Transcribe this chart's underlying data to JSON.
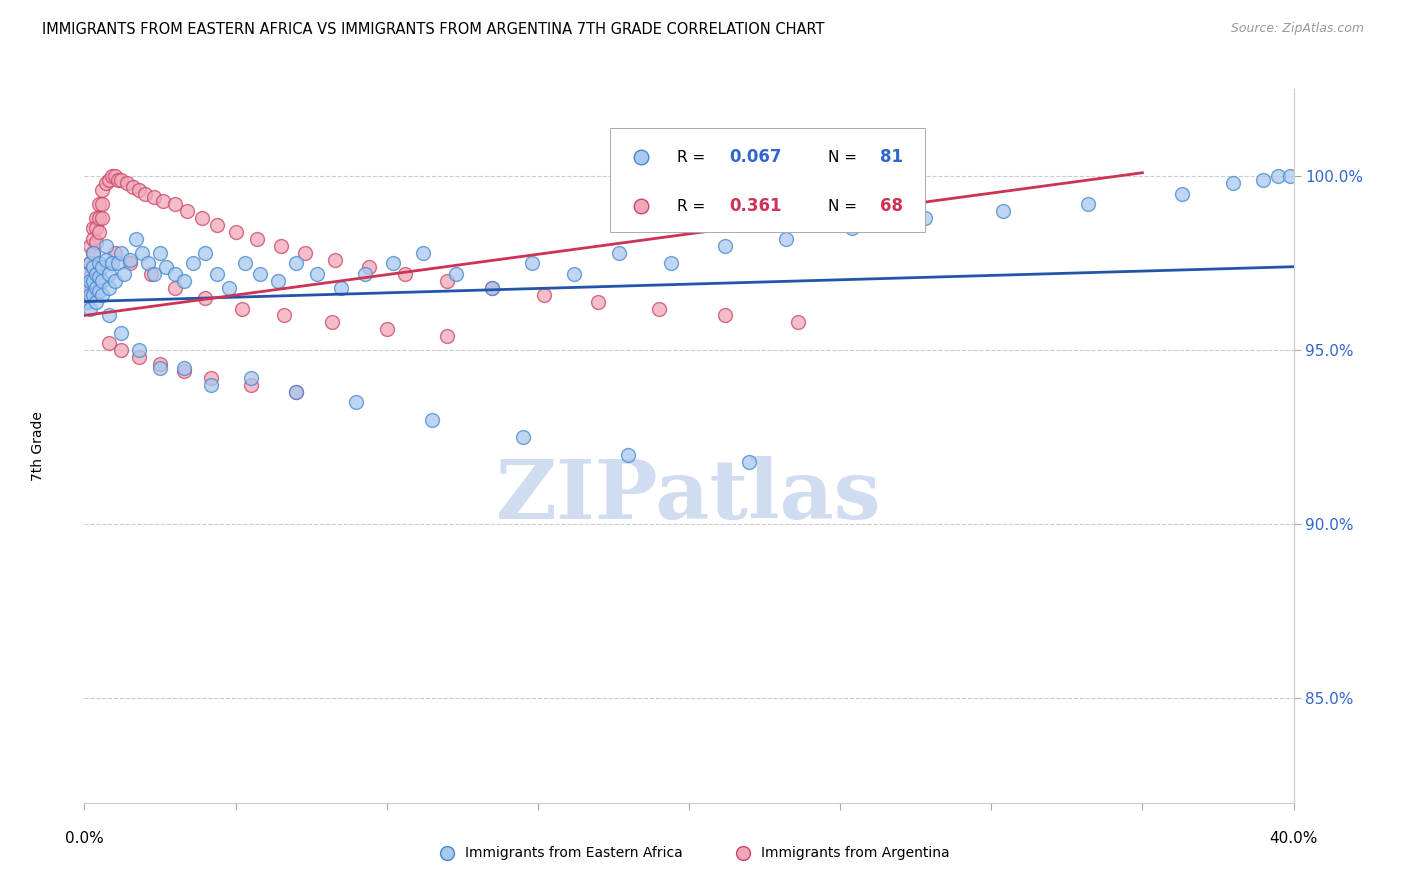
{
  "title": "IMMIGRANTS FROM EASTERN AFRICA VS IMMIGRANTS FROM ARGENTINA 7TH GRADE CORRELATION CHART",
  "source": "Source: ZipAtlas.com",
  "ylabel": "7th Grade",
  "xlim": [
    0.0,
    0.4
  ],
  "ylim": [
    0.82,
    1.025
  ],
  "yticks": [
    0.85,
    0.9,
    0.95,
    1.0
  ],
  "ytick_labels": [
    "85.0%",
    "90.0%",
    "95.0%",
    "100.0%"
  ],
  "xticks": [
    0.0,
    0.05,
    0.1,
    0.15,
    0.2,
    0.25,
    0.3,
    0.35,
    0.4
  ],
  "color_blue": "#A8C8F0",
  "color_pink": "#F0A8B8",
  "color_blue_edge": "#4488CC",
  "color_pink_edge": "#CC4466",
  "color_blue_line": "#2255AA",
  "color_pink_line": "#CC3355",
  "color_axis_blue": "#3366CC",
  "color_axis_pink": "#CC3355",
  "watermark": "ZIPatlas",
  "watermark_color": "#D0DCF0",
  "legend_R1": "0.067",
  "legend_N1": "81",
  "legend_R2": "0.361",
  "legend_N2": "68",
  "blue_x": [
    0.001,
    0.001,
    0.001,
    0.002,
    0.002,
    0.002,
    0.002,
    0.003,
    0.003,
    0.003,
    0.003,
    0.004,
    0.004,
    0.004,
    0.005,
    0.005,
    0.005,
    0.006,
    0.006,
    0.006,
    0.007,
    0.007,
    0.008,
    0.008,
    0.009,
    0.01,
    0.011,
    0.012,
    0.013,
    0.015,
    0.017,
    0.019,
    0.021,
    0.023,
    0.025,
    0.027,
    0.03,
    0.033,
    0.036,
    0.04,
    0.044,
    0.048,
    0.053,
    0.058,
    0.064,
    0.07,
    0.077,
    0.085,
    0.093,
    0.102,
    0.112,
    0.123,
    0.135,
    0.148,
    0.162,
    0.177,
    0.194,
    0.212,
    0.232,
    0.254,
    0.278,
    0.304,
    0.332,
    0.363,
    0.38,
    0.39,
    0.395,
    0.399,
    0.008,
    0.012,
    0.018,
    0.025,
    0.033,
    0.042,
    0.055,
    0.07,
    0.09,
    0.115,
    0.145,
    0.18,
    0.22
  ],
  "blue_y": [
    0.972,
    0.968,
    0.964,
    0.975,
    0.97,
    0.966,
    0.962,
    0.978,
    0.974,
    0.97,
    0.966,
    0.972,
    0.968,
    0.964,
    0.975,
    0.971,
    0.967,
    0.974,
    0.97,
    0.966,
    0.98,
    0.976,
    0.972,
    0.968,
    0.975,
    0.97,
    0.975,
    0.978,
    0.972,
    0.976,
    0.982,
    0.978,
    0.975,
    0.972,
    0.978,
    0.974,
    0.972,
    0.97,
    0.975,
    0.978,
    0.972,
    0.968,
    0.975,
    0.972,
    0.97,
    0.975,
    0.972,
    0.968,
    0.972,
    0.975,
    0.978,
    0.972,
    0.968,
    0.975,
    0.972,
    0.978,
    0.975,
    0.98,
    0.982,
    0.985,
    0.988,
    0.99,
    0.992,
    0.995,
    0.998,
    0.999,
    1.0,
    1.0,
    0.96,
    0.955,
    0.95,
    0.945,
    0.945,
    0.94,
    0.942,
    0.938,
    0.935,
    0.93,
    0.925,
    0.92,
    0.918
  ],
  "pink_x": [
    0.001,
    0.001,
    0.001,
    0.002,
    0.002,
    0.002,
    0.002,
    0.003,
    0.003,
    0.003,
    0.003,
    0.004,
    0.004,
    0.004,
    0.005,
    0.005,
    0.005,
    0.006,
    0.006,
    0.006,
    0.007,
    0.008,
    0.009,
    0.01,
    0.011,
    0.012,
    0.014,
    0.016,
    0.018,
    0.02,
    0.023,
    0.026,
    0.03,
    0.034,
    0.039,
    0.044,
    0.05,
    0.057,
    0.065,
    0.073,
    0.083,
    0.094,
    0.106,
    0.12,
    0.135,
    0.152,
    0.17,
    0.19,
    0.212,
    0.236,
    0.01,
    0.015,
    0.022,
    0.03,
    0.04,
    0.052,
    0.066,
    0.082,
    0.1,
    0.12,
    0.008,
    0.012,
    0.018,
    0.025,
    0.033,
    0.042,
    0.055,
    0.07
  ],
  "pink_y": [
    0.972,
    0.968,
    0.964,
    0.98,
    0.975,
    0.971,
    0.967,
    0.985,
    0.982,
    0.978,
    0.974,
    0.988,
    0.985,
    0.981,
    0.992,
    0.988,
    0.984,
    0.996,
    0.992,
    0.988,
    0.998,
    0.999,
    1.0,
    1.0,
    0.999,
    0.999,
    0.998,
    0.997,
    0.996,
    0.995,
    0.994,
    0.993,
    0.992,
    0.99,
    0.988,
    0.986,
    0.984,
    0.982,
    0.98,
    0.978,
    0.976,
    0.974,
    0.972,
    0.97,
    0.968,
    0.966,
    0.964,
    0.962,
    0.96,
    0.958,
    0.978,
    0.975,
    0.972,
    0.968,
    0.965,
    0.962,
    0.96,
    0.958,
    0.956,
    0.954,
    0.952,
    0.95,
    0.948,
    0.946,
    0.944,
    0.942,
    0.94,
    0.938
  ]
}
